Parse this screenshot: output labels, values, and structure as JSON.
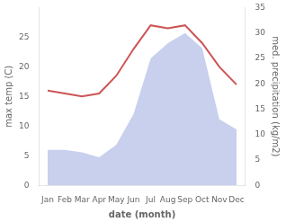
{
  "chart_data": {
    "type": "line",
    "xlabel": "date (month)",
    "ylabel": "max temp (C)",
    "y2label": "med. precipitation (kg/m2)",
    "categories": [
      "Jan",
      "Feb",
      "Mar",
      "Apr",
      "May",
      "Jun",
      "Jul",
      "Aug",
      "Sep",
      "Oct",
      "Nov",
      "Dec"
    ],
    "series": [
      {
        "type": "area",
        "axis": "y2",
        "color": "#c8d0ee",
        "values": [
          7.0,
          7.0,
          6.5,
          5.5,
          8.0,
          14.0,
          25.0,
          28.0,
          30.0,
          27.0,
          13.0,
          11.0
        ]
      },
      {
        "type": "line",
        "color": "#cc5555",
        "values": [
          16.0,
          15.5,
          15.0,
          15.5,
          18.5,
          23.0,
          27.0,
          26.5,
          27.0,
          24.0,
          20.0,
          17.0
        ]
      }
    ],
    "ylim": [
      0,
      30
    ],
    "yticks": [
      0,
      5,
      10,
      15,
      20,
      25
    ],
    "y2lim": [
      0,
      35
    ],
    "y2ticks": [
      0,
      5,
      10,
      15,
      20,
      25,
      30,
      35
    ],
    "grid": false
  }
}
